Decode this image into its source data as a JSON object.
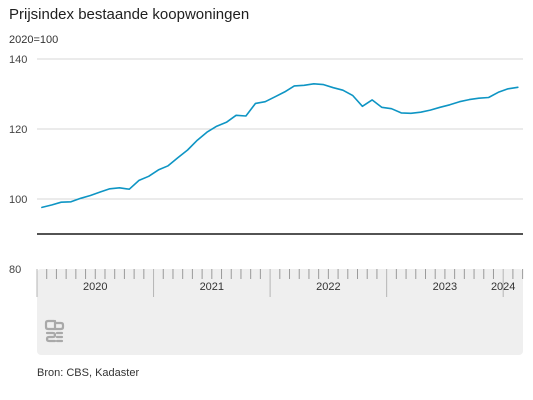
{
  "title": "Prijsindex bestaande koopwoningen",
  "unit_label": "2020=100",
  "source": "Bron: CBS, Kadaster",
  "logo": {
    "name": "cbs-logo",
    "text": "cbs"
  },
  "colors": {
    "line": "#0e95c4",
    "baseline": "#1a1a1a",
    "grid": "#d7d7d7",
    "axis_band": "#efefef",
    "tick": "#9a9a9a"
  },
  "chart_data": {
    "type": "line",
    "title": "Prijsindex bestaande koopwoningen",
    "ylabel": "2020=100",
    "xlabel": "",
    "ylim": [
      80,
      140
    ],
    "yticks": [
      80,
      100,
      120,
      140
    ],
    "grid": true,
    "x_label_positions": [
      2020.5,
      2021.5,
      2022.5,
      2023.5,
      2024.0
    ],
    "x_labels": [
      "2020",
      "2021",
      "2022",
      "2023",
      "2024"
    ],
    "series": [
      {
        "x": [
          2020.042,
          2020.125,
          2020.208,
          2020.292,
          2020.375,
          2020.458,
          2020.542,
          2020.625,
          2020.708,
          2020.792,
          2020.875,
          2020.958,
          2021.042,
          2021.125,
          2021.208,
          2021.292,
          2021.375,
          2021.458,
          2021.542,
          2021.625,
          2021.708,
          2021.792,
          2021.875,
          2021.958,
          2022.042,
          2022.125,
          2022.208,
          2022.292,
          2022.375,
          2022.458,
          2022.542,
          2022.625,
          2022.708,
          2022.792,
          2022.875,
          2022.958,
          2023.042,
          2023.125,
          2023.208,
          2023.292,
          2023.375,
          2023.458,
          2023.542,
          2023.625,
          2023.708,
          2023.792,
          2023.875,
          2023.958,
          2024.042,
          2024.125
        ],
        "values": [
          97.6,
          98.3,
          99.1,
          99.2,
          100.2,
          101.0,
          102.0,
          102.9,
          103.2,
          102.8,
          105.3,
          106.5,
          108.3,
          109.5,
          111.8,
          114.0,
          116.8,
          119.1,
          120.8,
          121.9,
          123.9,
          123.7,
          127.3,
          127.8,
          129.2,
          130.6,
          132.3,
          132.5,
          132.9,
          132.7,
          131.8,
          131.1,
          129.6,
          126.5,
          128.3,
          126.2,
          125.8,
          124.6,
          124.5,
          124.8,
          125.4,
          126.2,
          126.9,
          127.8,
          128.4,
          128.8,
          129.0,
          130.5,
          131.5,
          131.9
        ]
      }
    ]
  }
}
